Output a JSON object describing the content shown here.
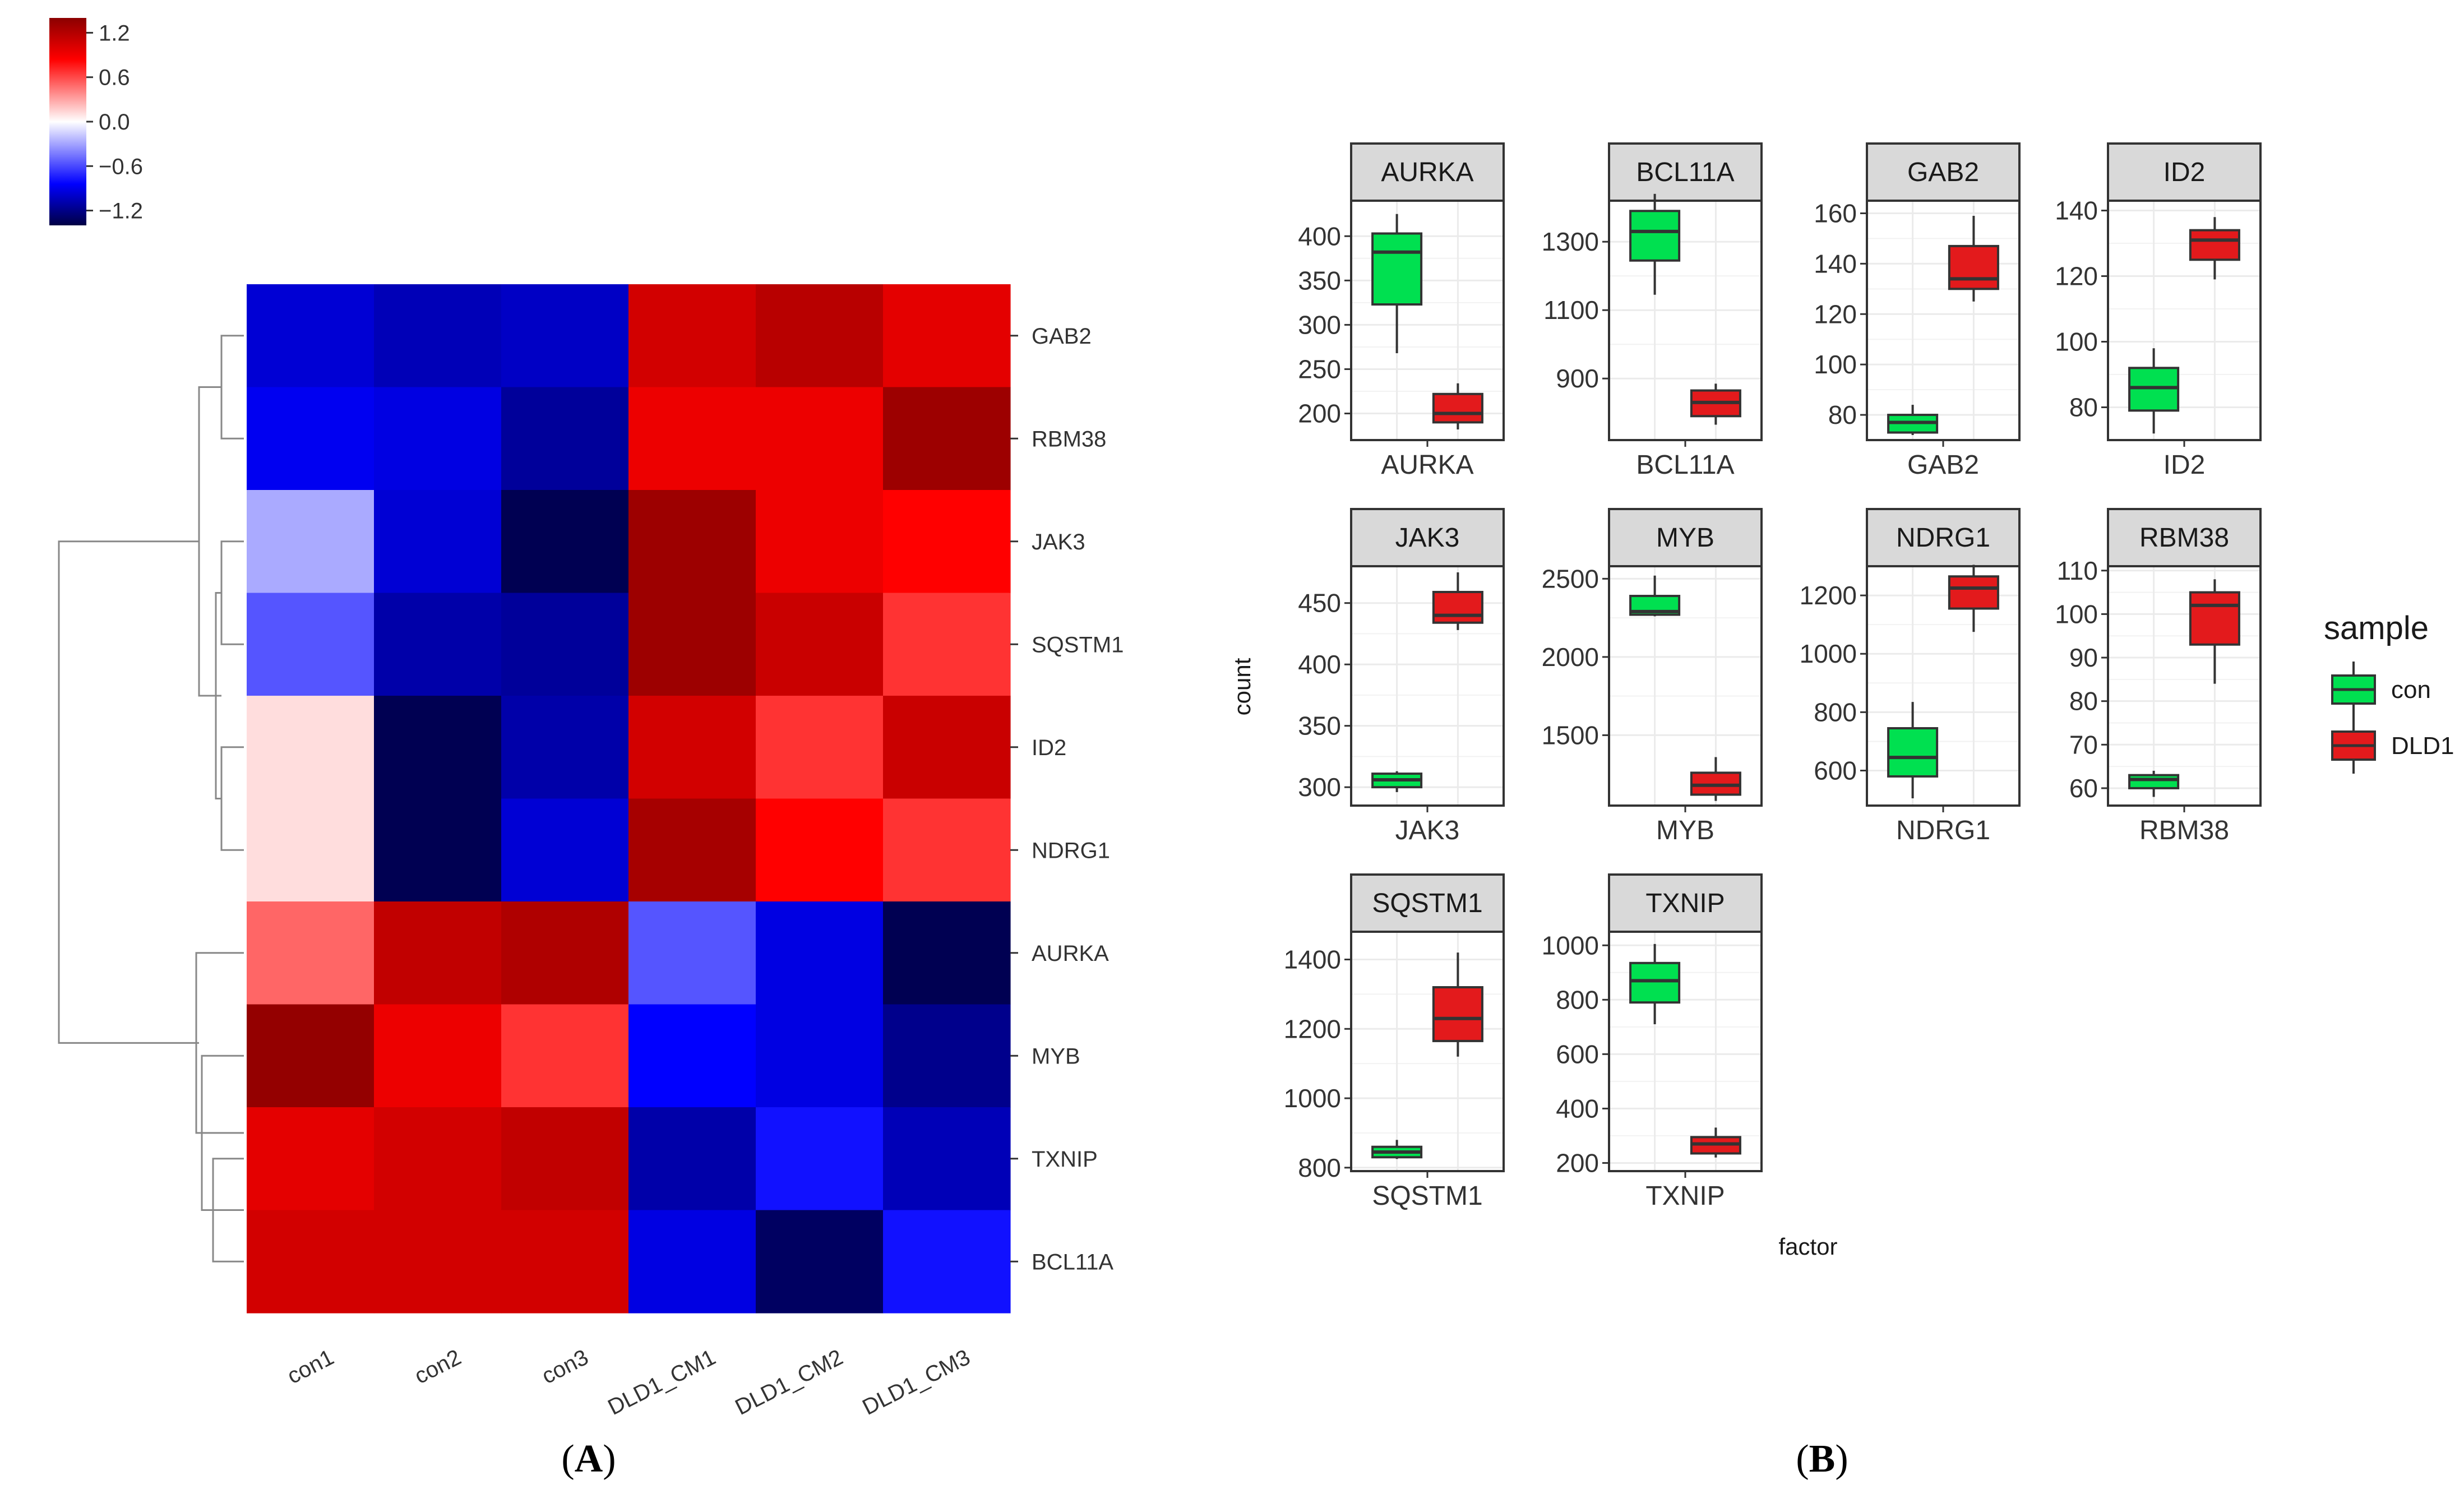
{
  "chart_data": [
    {
      "type": "heatmap",
      "panel_label": "A",
      "columns": [
        "con1",
        "con2",
        "con3",
        "DLD1_CM1",
        "DLD1_CM2",
        "DLD1_CM3"
      ],
      "rows": [
        "GAB2",
        "RBM38",
        "JAK3",
        "SQSTM1",
        "ID2",
        "NDRG1",
        "AURKA",
        "MYB",
        "TXNIP",
        "BCL11A"
      ],
      "values": [
        [
          -0.9,
          -1.0,
          -0.95,
          1.0,
          1.15,
          0.9
        ],
        [
          -0.8,
          -0.85,
          -1.1,
          0.85,
          0.85,
          1.3
        ],
        [
          -0.25,
          -0.9,
          -1.35,
          1.3,
          0.85,
          0.75
        ],
        [
          -0.5,
          -1.05,
          -1.1,
          1.3,
          1.05,
          0.6
        ],
        [
          0.1,
          -1.35,
          -1.05,
          1.0,
          0.6,
          1.05
        ],
        [
          0.1,
          -1.35,
          -0.9,
          1.25,
          0.75,
          0.6
        ],
        [
          0.45,
          1.1,
          1.2,
          -0.5,
          -0.85,
          -1.35
        ],
        [
          1.35,
          0.85,
          0.6,
          -0.75,
          -0.85,
          -1.15
        ],
        [
          0.9,
          1.0,
          1.1,
          -1.05,
          -0.7,
          -1.0
        ],
        [
          1.0,
          1.0,
          1.0,
          -0.85,
          -1.3,
          -0.7
        ]
      ],
      "colorbar": {
        "ticks": [
          "1.2",
          "0.6",
          "0.0",
          "−0.6",
          "−1.2"
        ],
        "tick_values": [
          1.2,
          0.6,
          0.0,
          -0.6,
          -1.2
        ],
        "range": [
          -1.4,
          1.4
        ],
        "colors": {
          "high": "#8b0000",
          "mid_high": "#ff0000",
          "mid": "#ffffff",
          "mid_low": "#0000ff",
          "low": "#000044"
        }
      },
      "row_dendrogram": true
    },
    {
      "type": "box",
      "panel_label": "B",
      "xlabel": "factor",
      "ylabel": "count",
      "legend": {
        "title": "sample",
        "placement": "right",
        "entries": [
          {
            "name": "con",
            "color": "#00e050"
          },
          {
            "name": "DLD1",
            "color": "#e31a1c"
          }
        ]
      },
      "facets": [
        {
          "gene": "AURKA",
          "yticks": [
            200,
            250,
            300,
            350,
            400
          ],
          "ylim": [
            170,
            440
          ],
          "boxes": {
            "con": {
              "min": 268,
              "q1": 323,
              "median": 382,
              "q3": 403,
              "max": 425
            },
            "DLD1": {
              "min": 182,
              "q1": 190,
              "median": 200,
              "q3": 222,
              "max": 234
            }
          }
        },
        {
          "gene": "BCL11A",
          "yticks": [
            900,
            1100,
            1300
          ],
          "ylim": [
            720,
            1420
          ],
          "boxes": {
            "con": {
              "min": 1145,
              "q1": 1245,
              "median": 1330,
              "q3": 1390,
              "max": 1440
            },
            "DLD1": {
              "min": 765,
              "q1": 790,
              "median": 830,
              "q3": 865,
              "max": 885
            }
          }
        },
        {
          "gene": "GAB2",
          "yticks": [
            80,
            100,
            120,
            140,
            160
          ],
          "ylim": [
            70,
            165
          ],
          "boxes": {
            "con": {
              "min": 72,
              "q1": 73,
              "median": 77,
              "q3": 80,
              "max": 84
            },
            "DLD1": {
              "min": 125,
              "q1": 130,
              "median": 134,
              "q3": 147,
              "max": 159
            }
          }
        },
        {
          "gene": "ID2",
          "yticks": [
            80,
            100,
            120,
            140
          ],
          "ylim": [
            70,
            143
          ],
          "boxes": {
            "con": {
              "min": 72,
              "q1": 79,
              "median": 86,
              "q3": 92,
              "max": 98
            },
            "DLD1": {
              "min": 119,
              "q1": 125,
              "median": 131,
              "q3": 134,
              "max": 138
            }
          }
        },
        {
          "gene": "JAK3",
          "yticks": [
            300,
            350,
            400,
            450
          ],
          "ylim": [
            285,
            480
          ],
          "boxes": {
            "con": {
              "min": 296,
              "q1": 300,
              "median": 306,
              "q3": 311,
              "max": 313
            },
            "DLD1": {
              "min": 428,
              "q1": 434,
              "median": 440,
              "q3": 459,
              "max": 475
            }
          }
        },
        {
          "gene": "MYB",
          "yticks": [
            1500,
            2000,
            2500
          ],
          "ylim": [
            1050,
            2580
          ],
          "boxes": {
            "con": {
              "min": 2260,
              "q1": 2270,
              "median": 2290,
              "q3": 2390,
              "max": 2520
            },
            "DLD1": {
              "min": 1080,
              "q1": 1120,
              "median": 1180,
              "q3": 1260,
              "max": 1360
            }
          }
        },
        {
          "gene": "NDRG1",
          "yticks": [
            600,
            800,
            1000,
            1200
          ],
          "ylim": [
            480,
            1300
          ],
          "boxes": {
            "con": {
              "min": 505,
              "q1": 580,
              "median": 645,
              "q3": 745,
              "max": 835
            },
            "DLD1": {
              "min": 1075,
              "q1": 1155,
              "median": 1225,
              "q3": 1265,
              "max": 1305
            }
          }
        },
        {
          "gene": "RBM38",
          "yticks": [
            60,
            70,
            80,
            90,
            100,
            110
          ],
          "ylim": [
            56,
            111
          ],
          "boxes": {
            "con": {
              "min": 58,
              "q1": 60,
              "median": 62,
              "q3": 63,
              "max": 64
            },
            "DLD1": {
              "min": 84,
              "q1": 93,
              "median": 102,
              "q3": 105,
              "max": 108
            }
          }
        },
        {
          "gene": "SQSTM1",
          "yticks": [
            800,
            1000,
            1200,
            1400
          ],
          "ylim": [
            790,
            1480
          ],
          "boxes": {
            "con": {
              "min": 825,
              "q1": 830,
              "median": 845,
              "q3": 860,
              "max": 880
            },
            "DLD1": {
              "min": 1120,
              "q1": 1165,
              "median": 1230,
              "q3": 1320,
              "max": 1420
            }
          }
        },
        {
          "gene": "TXNIP",
          "yticks": [
            200,
            400,
            600,
            800,
            1000
          ],
          "ylim": [
            170,
            1050
          ],
          "boxes": {
            "con": {
              "min": 710,
              "q1": 790,
              "median": 870,
              "q3": 935,
              "max": 1005
            },
            "DLD1": {
              "min": 220,
              "q1": 235,
              "median": 270,
              "q3": 295,
              "max": 330
            }
          }
        }
      ]
    }
  ]
}
